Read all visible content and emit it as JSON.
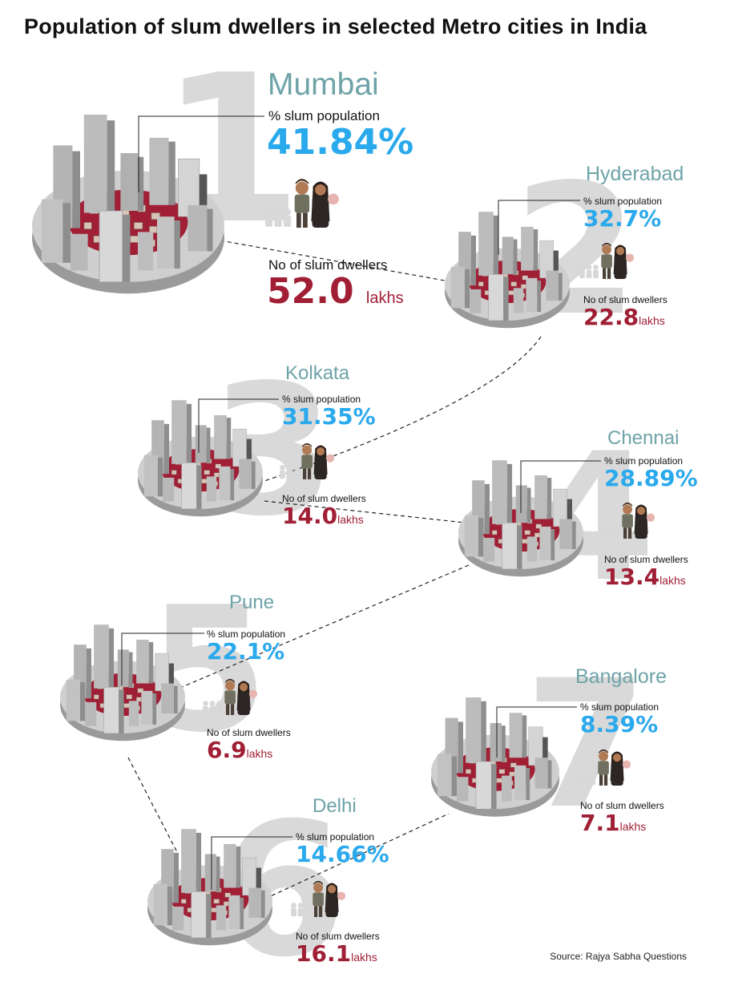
{
  "title": "Population of slum dwellers in selected Metro cities in India",
  "source": "Source: Rajya Sabha Questions",
  "pct_label": "% slum population",
  "dwellers_label": "No of slum dwellers",
  "unit": "lakhs",
  "colors": {
    "percent": "#2aa9ec",
    "dwellers": "#a01f35",
    "city": "#6ea3a8",
    "rank": "#d9d9d9",
    "slum": "#a01f35",
    "building": "#a9a9a9"
  },
  "cities": [
    {
      "rank": "1",
      "name": "Mumbai",
      "percent": "41.84%",
      "dwellers": "52.0"
    },
    {
      "rank": "2",
      "name": "Hyderabad",
      "percent": "32.7%",
      "dwellers": "22.8"
    },
    {
      "rank": "3",
      "name": "Kolkata",
      "percent": "31.35%",
      "dwellers": "14.0"
    },
    {
      "rank": "4",
      "name": "Chennai",
      "percent": "28.89%",
      "dwellers": "13.4"
    },
    {
      "rank": "5",
      "name": "Pune",
      "percent": "22.1%",
      "dwellers": "6.9"
    },
    {
      "rank": "6",
      "name": "Delhi",
      "percent": "14.66%",
      "dwellers": "16.1"
    },
    {
      "rank": "7",
      "name": "Bangalore",
      "percent": "8.39%",
      "dwellers": "7.1"
    }
  ]
}
